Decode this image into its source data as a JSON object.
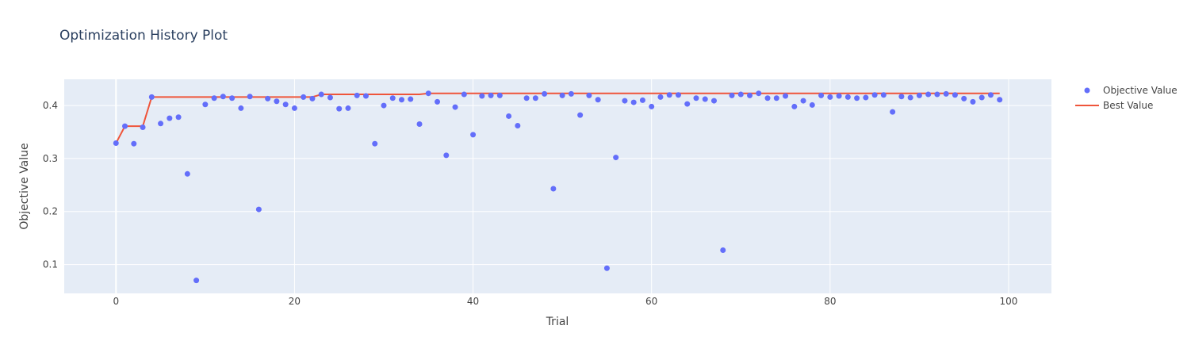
{
  "chart_data": {
    "type": "scatter",
    "title": "Optimization History Plot",
    "xlabel": "Trial",
    "ylabel": "Objective Value",
    "xlim": [
      -5.8,
      104.8
    ],
    "ylim": [
      0.0455,
      0.4495
    ],
    "x_ticks": [
      0,
      20,
      40,
      60,
      80,
      100
    ],
    "y_ticks": [
      0.1,
      0.2,
      0.3,
      0.4
    ],
    "x_tick_labels": [
      "0",
      "20",
      "40",
      "60",
      "80",
      "100"
    ],
    "y_tick_labels": [
      "0.1",
      "0.2",
      "0.3",
      "0.4"
    ],
    "grid": true,
    "legend_position": "top-right",
    "colors": {
      "objective": "#636efa",
      "best": "#ef553b",
      "plot_bg": "#e5ecf6",
      "grid": "#ffffff",
      "text": "#444444",
      "title": "#2a3f5f"
    },
    "series": [
      {
        "name": "Objective Value",
        "mode": "markers",
        "x": [
          0,
          1,
          2,
          3,
          4,
          5,
          6,
          7,
          8,
          9,
          10,
          11,
          12,
          13,
          14,
          15,
          16,
          17,
          18,
          19,
          20,
          21,
          22,
          23,
          24,
          25,
          26,
          27,
          28,
          29,
          30,
          31,
          32,
          33,
          34,
          35,
          36,
          37,
          38,
          39,
          40,
          41,
          42,
          43,
          44,
          45,
          46,
          47,
          48,
          49,
          50,
          51,
          52,
          53,
          54,
          55,
          56,
          57,
          58,
          59,
          60,
          61,
          62,
          63,
          64,
          65,
          66,
          67,
          68,
          69,
          70,
          71,
          72,
          73,
          74,
          75,
          76,
          77,
          78,
          79,
          80,
          81,
          82,
          83,
          84,
          85,
          86,
          87,
          88,
          89,
          90,
          91,
          92,
          93,
          94,
          95,
          96,
          97,
          98,
          99
        ],
        "y": [
          0.329,
          0.361,
          0.328,
          0.359,
          0.416,
          0.366,
          0.376,
          0.378,
          0.271,
          0.07,
          0.402,
          0.414,
          0.417,
          0.414,
          0.395,
          0.417,
          0.204,
          0.413,
          0.408,
          0.402,
          0.395,
          0.416,
          0.413,
          0.421,
          0.415,
          0.394,
          0.395,
          0.419,
          0.418,
          0.328,
          0.4,
          0.414,
          0.411,
          0.412,
          0.365,
          0.423,
          0.407,
          0.306,
          0.397,
          0.421,
          0.345,
          0.418,
          0.419,
          0.419,
          0.38,
          0.362,
          0.414,
          0.414,
          0.422,
          0.243,
          0.419,
          0.422,
          0.382,
          0.419,
          0.411,
          0.093,
          0.302,
          0.409,
          0.406,
          0.41,
          0.398,
          0.416,
          0.42,
          0.42,
          0.403,
          0.414,
          0.412,
          0.409,
          0.127,
          0.419,
          0.421,
          0.419,
          0.423,
          0.414,
          0.414,
          0.418,
          0.398,
          0.409,
          0.401,
          0.419,
          0.416,
          0.418,
          0.416,
          0.414,
          0.415,
          0.42,
          0.42,
          0.388,
          0.417,
          0.415,
          0.419,
          0.421,
          0.421,
          0.422,
          0.42,
          0.413,
          0.407,
          0.415,
          0.42,
          0.411
        ]
      },
      {
        "name": "Best Value",
        "mode": "lines",
        "x": [
          0,
          1,
          2,
          3,
          4,
          22,
          23,
          34,
          35,
          47,
          48,
          99
        ],
        "y": [
          0.329,
          0.361,
          0.361,
          0.361,
          0.416,
          0.416,
          0.421,
          0.421,
          0.423,
          0.423,
          0.423,
          0.423
        ]
      }
    ]
  }
}
